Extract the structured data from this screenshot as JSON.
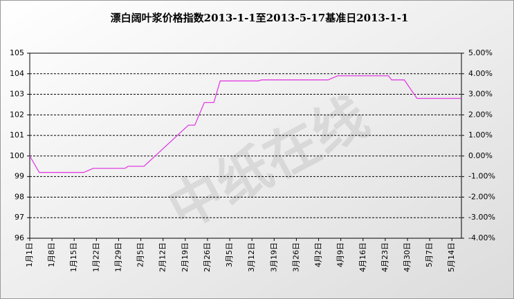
{
  "chart_data": {
    "type": "line",
    "title": "漂白阔叶浆价格指数2013-1-1至2013-5-17基准日2013-1-1",
    "watermark": "中纸在线",
    "categories": [
      "1月1日",
      "1月8日",
      "1月15日",
      "1月22日",
      "1月29日",
      "2月5日",
      "2月12日",
      "2月19日",
      "2月26日",
      "3月5日",
      "3月12日",
      "3月19日",
      "3月26日",
      "4月2日",
      "4月9日",
      "4月16日",
      "4月23日",
      "4月30日",
      "5月7日",
      "5月14日"
    ],
    "x": [
      "1月1日",
      "1月4日",
      "1月18日",
      "1月21日",
      "1月31日",
      "2月1日",
      "2月6日",
      "2月20日",
      "2月22日",
      "2月25日",
      "2月28日",
      "3月2日",
      "3月14日",
      "3月15日",
      "4月5日",
      "4月8日",
      "4月24日",
      "4月25日",
      "4月29日",
      "5月3日",
      "5月17日"
    ],
    "series": [
      {
        "color": "#e23ee2",
        "values": [
          100,
          99.2,
          99.2,
          99.4,
          99.4,
          99.5,
          99.5,
          101.5,
          101.5,
          102.6,
          102.6,
          103.65,
          103.65,
          103.7,
          103.7,
          103.9,
          103.9,
          103.7,
          103.7,
          102.8,
          102.8
        ]
      }
    ],
    "ylim": [
      96,
      105
    ],
    "yticks": [
      96,
      97,
      98,
      99,
      100,
      101,
      102,
      103,
      104,
      105
    ],
    "y2lim": [
      -4,
      5
    ],
    "y2ticks": [
      {
        "value": -4,
        "label": "-4.00%"
      },
      {
        "value": -3,
        "label": "-3.00%"
      },
      {
        "value": -2,
        "label": "-2.00%"
      },
      {
        "value": -1,
        "label": "-1.00%"
      },
      {
        "value": 0,
        "label": "0.00%"
      },
      {
        "value": 1,
        "label": "1.00%"
      },
      {
        "value": 2,
        "label": "2.00%"
      },
      {
        "value": 3,
        "label": "3.00%"
      },
      {
        "value": 4,
        "label": "4.00%"
      },
      {
        "value": 5,
        "label": "5.00%"
      }
    ],
    "grid": true
  }
}
